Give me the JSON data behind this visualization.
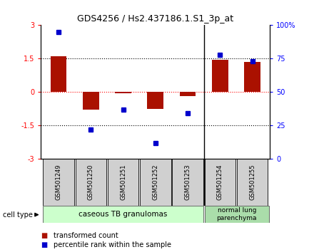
{
  "title": "GDS4256 / Hs2.437186.1.S1_3p_at",
  "samples": [
    "GSM501249",
    "GSM501250",
    "GSM501251",
    "GSM501252",
    "GSM501253",
    "GSM501254",
    "GSM501255"
  ],
  "transformed_count": [
    1.6,
    -0.8,
    -0.05,
    -0.75,
    -0.2,
    1.45,
    1.35
  ],
  "percentile_rank": [
    95,
    22,
    37,
    12,
    34,
    78,
    73
  ],
  "bar_color": "#aa1100",
  "dot_color": "#0000cc",
  "ylim_left": [
    -3,
    3
  ],
  "ylim_right": [
    0,
    100
  ],
  "yticks_left": [
    -3,
    -1.5,
    0,
    1.5,
    3
  ],
  "ytick_labels_left": [
    "-3",
    "-1.5",
    "0",
    "1.5",
    "3"
  ],
  "yticks_right": [
    0,
    25,
    50,
    75,
    100
  ],
  "ytick_labels_right": [
    "0",
    "25",
    "50",
    "75",
    "100%"
  ],
  "group1_label": "caseous TB granulomas",
  "group2_label": "normal lung\nparenchyma",
  "group1_color": "#ccffcc",
  "group2_color": "#aaddaa",
  "cell_type_label": "cell type",
  "legend_bar_label": "transformed count",
  "legend_dot_label": "percentile rank within the sample",
  "bar_width": 0.5,
  "separator_col": 4.5,
  "sample_box_color": "#d0d0d0",
  "n_group1": 5,
  "n_group2": 2
}
